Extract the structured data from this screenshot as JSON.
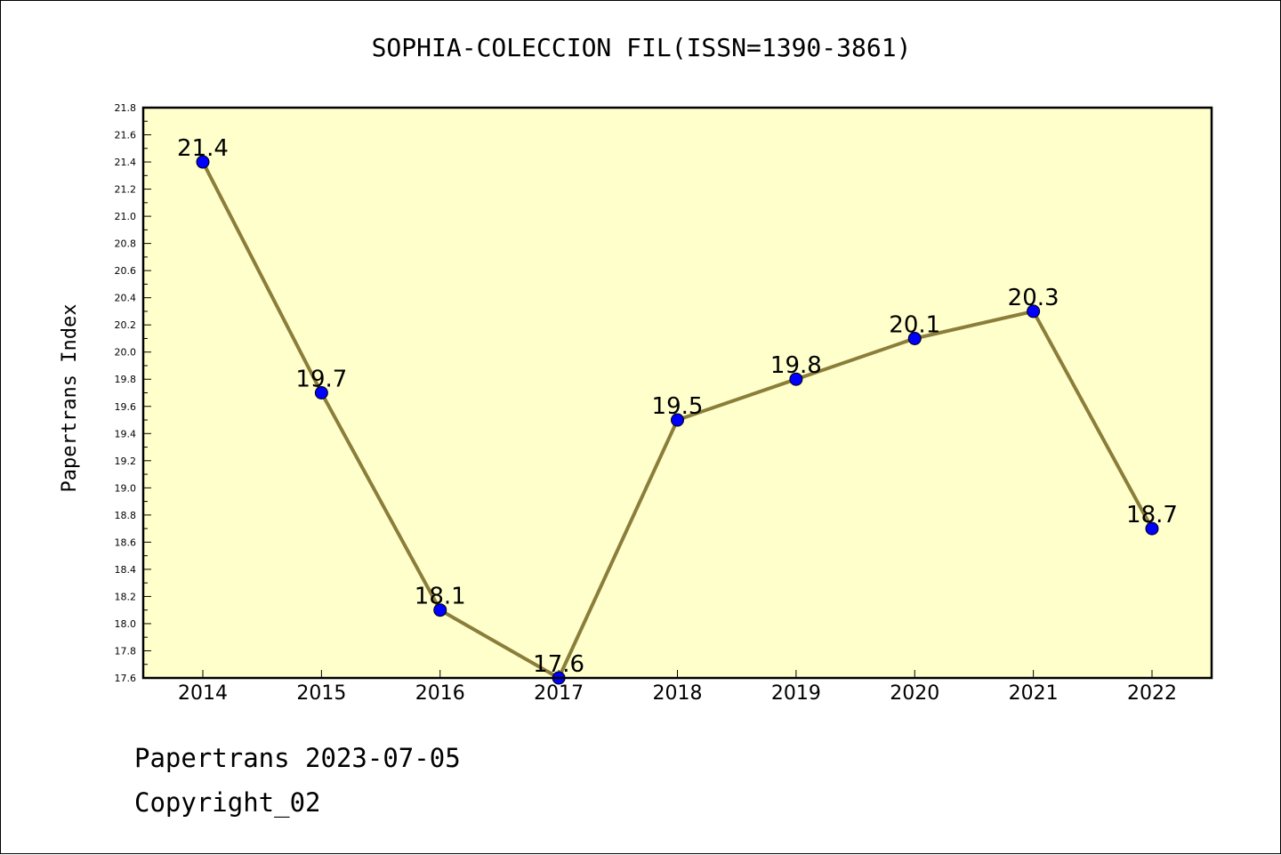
{
  "chart_data": {
    "type": "line",
    "title": "SOPHIA-COLECCION FIL(ISSN=1390-3861)",
    "xlabel": "",
    "ylabel": "Papertrans Index",
    "categories": [
      "2014",
      "2015",
      "2016",
      "2017",
      "2018",
      "2019",
      "2020",
      "2021",
      "2022"
    ],
    "series": [
      {
        "values": [
          21.4,
          19.7,
          18.1,
          17.6,
          19.5,
          19.8,
          20.1,
          20.3,
          18.7
        ],
        "data_labels": [
          "21.4",
          "19.7",
          "18.1",
          "17.6",
          "19.5",
          "19.8",
          "20.1",
          "20.3",
          "18.7"
        ]
      }
    ],
    "ylim": [
      17.6,
      21.8
    ],
    "y_ticks": [
      "17.6",
      "17.8",
      "18.0",
      "18.2",
      "18.4",
      "18.6",
      "18.8",
      "19.0",
      "19.2",
      "19.4",
      "19.6",
      "19.8",
      "20.0",
      "20.2",
      "20.4",
      "20.6",
      "20.8",
      "21.0",
      "21.2",
      "21.4",
      "21.6",
      "21.8"
    ],
    "grid": false,
    "colors": {
      "plot_background": "#ffffcc",
      "line": "#8b7d3a",
      "marker": "#0000ff"
    }
  },
  "footer": {
    "line1": "Papertrans 2023-07-05",
    "line2": "Copyright_02"
  }
}
